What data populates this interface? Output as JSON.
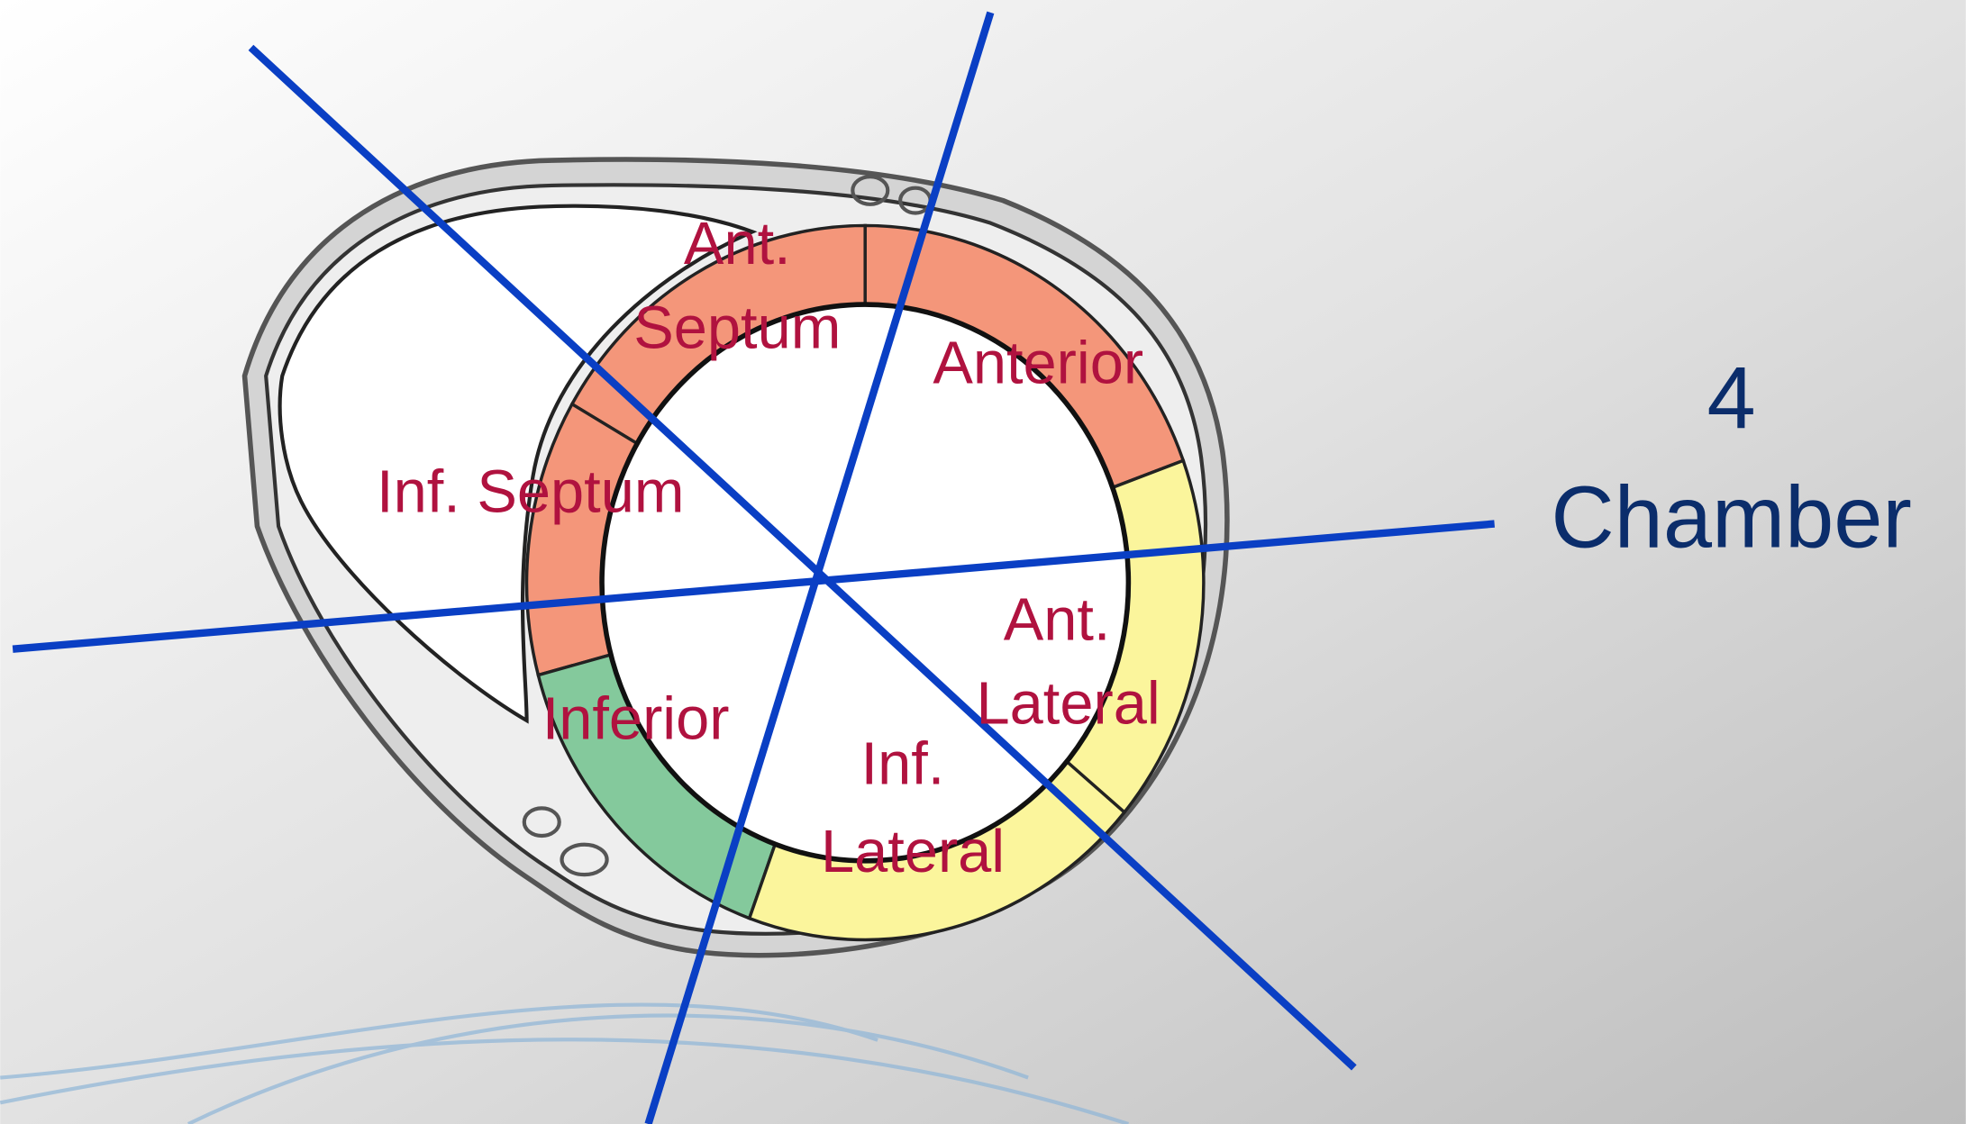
{
  "segments": [
    {
      "label_lines": [
        "Ant.",
        "Septum"
      ]
    },
    {
      "label_lines": [
        "Anterior"
      ]
    },
    {
      "label_lines": [
        "Inf. Septum"
      ]
    },
    {
      "label_lines": [
        "Inferior"
      ]
    },
    {
      "label_lines": [
        "Inf.",
        "Lateral"
      ]
    },
    {
      "label_lines": [
        "Ant.",
        "Lateral"
      ]
    }
  ],
  "view_label": {
    "lines": [
      "4",
      "Chamber"
    ]
  }
}
